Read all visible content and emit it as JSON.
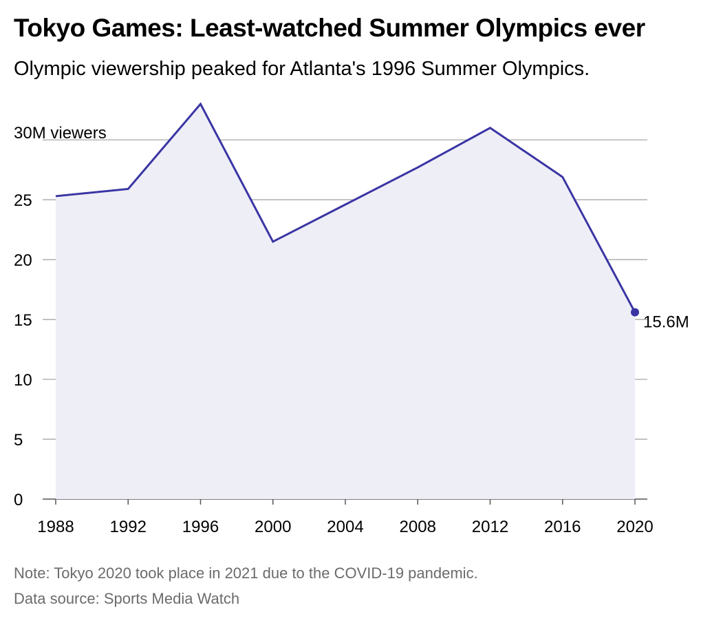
{
  "title": "Tokyo Games: Least-watched Summer Olympics ever",
  "subtitle": "Olympic viewership peaked for Atlanta's 1996 Summer Olympics.",
  "note": "Note: Tokyo 2020 took place in 2021 due to the COVID-19 pandemic.",
  "source": "Data source: Sports Media Watch",
  "colors": {
    "line": "#3a35a3",
    "area": "#eeeef7",
    "grid": "#9e9e9e",
    "axis": "#555555"
  },
  "chart_data": {
    "type": "area",
    "x": [
      1988,
      1992,
      1996,
      2000,
      2004,
      2008,
      2012,
      2016,
      2020
    ],
    "series": [
      {
        "values": [
          25.3,
          25.9,
          33.0,
          21.5,
          24.6,
          27.7,
          31.0,
          26.9,
          15.6
        ]
      }
    ],
    "xticks": [
      "1988",
      "1992",
      "1996",
      "2000",
      "2004",
      "2008",
      "2012",
      "2016",
      "2020"
    ],
    "yticks": [
      {
        "value": 0,
        "label": "0"
      },
      {
        "value": 5,
        "label": "5"
      },
      {
        "value": 10,
        "label": "10"
      },
      {
        "value": 15,
        "label": "15"
      },
      {
        "value": 20,
        "label": "20"
      },
      {
        "value": 25,
        "label": "25"
      },
      {
        "value": 30,
        "label": "30M viewers"
      }
    ],
    "ylim": [
      0,
      33
    ],
    "xlim": [
      1988,
      2020
    ],
    "grid": true,
    "annotation": {
      "x": 2020,
      "y": 15.6,
      "label": "15.6M"
    }
  }
}
